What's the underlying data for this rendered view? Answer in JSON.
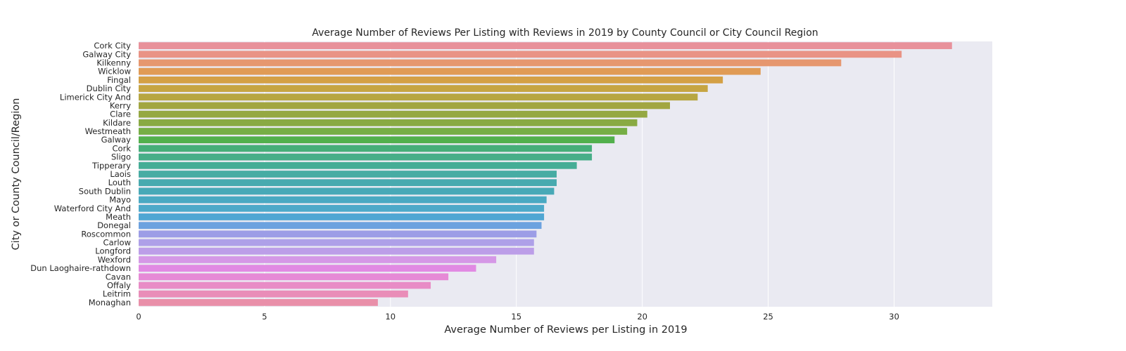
{
  "chart_data": {
    "type": "bar",
    "orientation": "horizontal",
    "title": "Average Number of Reviews Per Listing with Reviews in 2019 by County Council or City Council Region",
    "xlabel": "Average Number of Reviews per Listing in 2019",
    "ylabel": "City or County Council/Region",
    "xlim": [
      0,
      33.9
    ],
    "xticks": [
      0,
      5,
      10,
      15,
      20,
      25,
      30
    ],
    "grid": true,
    "legend": "none",
    "categories": [
      "Cork City",
      "Galway City",
      "Kilkenny",
      "Wicklow",
      "Fingal",
      "Dublin City",
      "Limerick City And",
      "Kerry",
      "Clare",
      "Kildare",
      "Westmeath",
      "Galway",
      "Cork",
      "Sligo",
      "Tipperary",
      "Laois",
      "Louth",
      "South Dublin",
      "Mayo",
      "Waterford City And",
      "Meath",
      "Donegal",
      "Roscommon",
      "Carlow",
      "Longford",
      "Wexford",
      "Dun Laoghaire-rathdown",
      "Cavan",
      "Offaly",
      "Leitrim",
      "Monaghan"
    ],
    "values": [
      32.3,
      30.3,
      27.9,
      24.7,
      23.2,
      22.6,
      22.2,
      21.1,
      20.2,
      19.8,
      19.4,
      18.9,
      18.0,
      18.0,
      17.4,
      16.6,
      16.6,
      16.5,
      16.2,
      16.1,
      16.1,
      16.0,
      15.8,
      15.7,
      15.7,
      14.2,
      13.4,
      12.3,
      11.6,
      10.7,
      9.5
    ],
    "colors": [
      "#e8919b",
      "#e99385",
      "#e6976f",
      "#e09b55",
      "#d4a045",
      "#c6a542",
      "#b7a641",
      "#a2a641",
      "#95a842",
      "#89aa43",
      "#76ae45",
      "#52b04c",
      "#46ae79",
      "#47ae88",
      "#45ad96",
      "#47aca3",
      "#48aaaf",
      "#48a9b7",
      "#4aa9c2",
      "#4da9c9",
      "#50a6d3",
      "#6ca2df",
      "#9c9de6",
      "#aea0e8",
      "#bc9ee8",
      "#d598e6",
      "#e18ae3",
      "#e68ad6",
      "#e88cc6",
      "#e98db8",
      "#e98fa9"
    ],
    "plot_background": "#eaeaf2",
    "grid_color": "#ffffff"
  }
}
